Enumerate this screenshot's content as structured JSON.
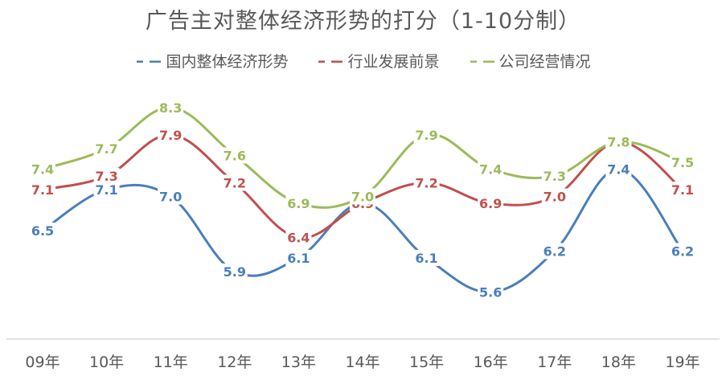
{
  "chart_data": {
    "type": "line",
    "title": "广告主对整体经济形势的打分（1-10分制）",
    "xlabel": "",
    "ylabel": "",
    "categories": [
      "09年",
      "10年",
      "11年",
      "12年",
      "13年",
      "14年",
      "15年",
      "16年",
      "17年",
      "18年",
      "19年"
    ],
    "series": [
      {
        "name": "国内整体经济形势",
        "color": "#4a7ebb",
        "values": [
          6.5,
          7.1,
          7.0,
          5.9,
          6.1,
          6.9,
          6.1,
          5.6,
          6.2,
          7.4,
          6.2
        ],
        "labels_shown": [
          true,
          true,
          true,
          true,
          true,
          false,
          true,
          true,
          true,
          true,
          true
        ]
      },
      {
        "name": "行业发展前景",
        "color": "#c0504d",
        "values": [
          7.1,
          7.3,
          7.9,
          7.2,
          6.4,
          6.9,
          7.2,
          6.9,
          7.0,
          7.8,
          7.1
        ],
        "labels_shown": [
          true,
          true,
          true,
          true,
          true,
          true,
          true,
          true,
          true,
          true,
          true
        ]
      },
      {
        "name": "公司经营情况",
        "color": "#9bbb59",
        "values": [
          7.4,
          7.7,
          8.3,
          7.6,
          6.9,
          7.0,
          7.9,
          7.4,
          7.3,
          7.8,
          7.5
        ],
        "labels_shown": [
          true,
          true,
          true,
          true,
          true,
          true,
          true,
          true,
          true,
          true,
          true
        ]
      }
    ],
    "ylim": [
      5.0,
      8.5
    ],
    "grid": false,
    "smooth": true,
    "legend_position": "top",
    "line_style": "smoothed lines with data labels, no markers"
  }
}
